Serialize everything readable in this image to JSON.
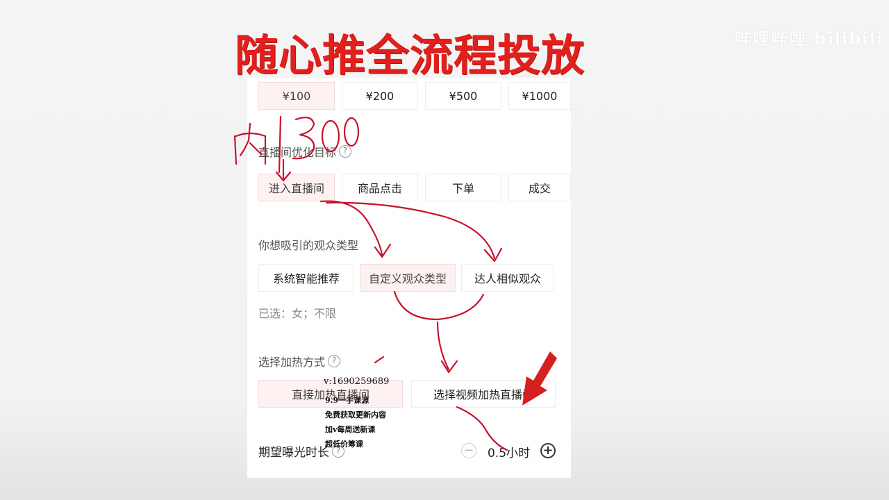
{
  "title": "随心推全流程投放",
  "watermark": "哔哩哔哩 bilibili",
  "budget": {
    "options": [
      "¥100",
      "¥200",
      "¥500",
      "¥1000"
    ]
  },
  "optimize": {
    "label": "直播间优化目标",
    "options": [
      "进入直播间",
      "商品点击",
      "下单",
      "成交"
    ]
  },
  "audience": {
    "label": "你想吸引的观众类型",
    "options": [
      "系统智能推荐",
      "自定义观众类型",
      "达人相似观众"
    ],
    "selected": "已选：女；不限"
  },
  "heat": {
    "label": "选择加热方式",
    "options": [
      "直接加热直播间",
      "选择视频加热直播间"
    ]
  },
  "duration": {
    "label": "期望曝光时长",
    "value": "0.5小时"
  },
  "handwriting": {
    "note": "内1300"
  },
  "promo": {
    "contact": "v:1690259689",
    "lines": [
      "9.9一手课源",
      "免费获取更新内容",
      "加v每周送新课",
      "超低价筹课"
    ]
  },
  "colors": {
    "accent": "#e1201d",
    "annotation": "#c8102e"
  }
}
